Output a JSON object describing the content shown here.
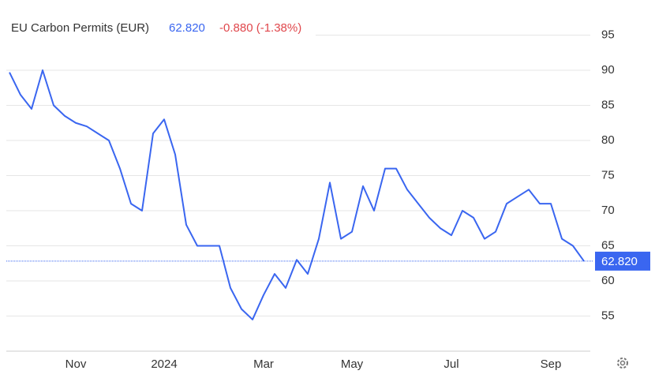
{
  "chart_data": {
    "type": "line",
    "title": "EU Carbon Permits (EUR)",
    "price": "62.820",
    "change": "-0.880 (-1.38%)",
    "categories": [
      null,
      null,
      null,
      null,
      null,
      null,
      "Nov",
      null,
      null,
      null,
      null,
      null,
      null,
      null,
      "2024",
      null,
      null,
      null,
      null,
      null,
      null,
      null,
      null,
      "Mar",
      null,
      null,
      null,
      null,
      null,
      null,
      null,
      "May",
      null,
      null,
      null,
      null,
      null,
      null,
      null,
      null,
      "Jul",
      null,
      null,
      null,
      null,
      null,
      null,
      null,
      null,
      "Sep",
      null,
      null,
      null
    ],
    "series": [
      {
        "name": "EU Carbon Permits",
        "color": "#3a66f0",
        "values": [
          89.7,
          86.5,
          84.5,
          90,
          85,
          83.5,
          82.5,
          82,
          81,
          80,
          76,
          71,
          70,
          81,
          83,
          78,
          68,
          65,
          65,
          65,
          59,
          56,
          54.5,
          58,
          61,
          59,
          63,
          61,
          66,
          74,
          66,
          67,
          73.5,
          70,
          76,
          76,
          73,
          71,
          69,
          67.5,
          66.5,
          70,
          69,
          66,
          67,
          71,
          72,
          73,
          71,
          71,
          66,
          65,
          62.82
        ]
      }
    ],
    "ylim": [
      50,
      100
    ],
    "yticks": [
      55,
      60,
      65,
      70,
      75,
      80,
      85,
      90,
      95
    ],
    "grid": true
  }
}
